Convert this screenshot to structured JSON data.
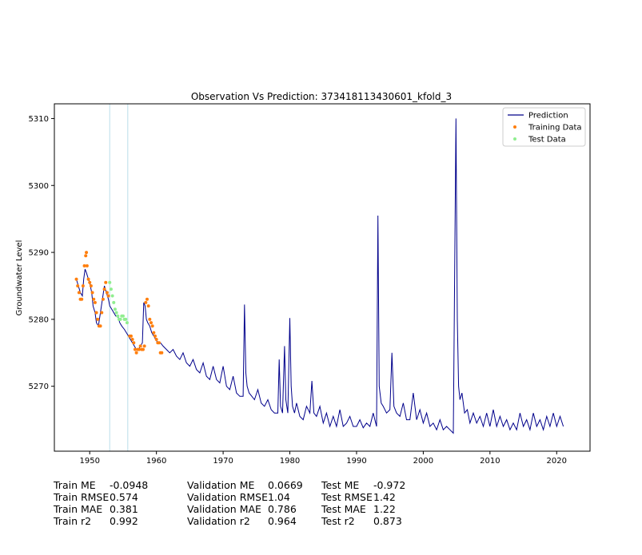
{
  "chart_data": {
    "type": "line",
    "title": "Observation Vs Prediction: 373418113430601_kfold_3",
    "xlabel": "",
    "ylabel": "Groundwater Level",
    "xlim": [
      1944.7,
      2025
    ],
    "ylim": [
      5260.3,
      5312.2
    ],
    "xticks": [
      1950,
      1960,
      1970,
      1980,
      1990,
      2000,
      2010,
      2020
    ],
    "yticks": [
      5270,
      5280,
      5290,
      5300,
      5310
    ],
    "grid": false,
    "legend_position": "top-right",
    "vlines": [
      1953.0,
      1955.7
    ],
    "series": [
      {
        "name": "Prediction",
        "kind": "line",
        "color": "#00008b",
        "x": [
          1948.0,
          1948.3,
          1948.6,
          1948.9,
          1949.1,
          1949.3,
          1949.5,
          1949.8,
          1950.0,
          1950.3,
          1950.5,
          1950.8,
          1951.0,
          1951.3,
          1951.6,
          1951.9,
          1952.2,
          1952.5,
          1952.8,
          1953.0,
          1953.3,
          1953.6,
          1953.9,
          1954.2,
          1954.5,
          1954.8,
          1955.2,
          1955.5,
          1955.8,
          1956.1,
          1956.4,
          1956.7,
          1957.0,
          1957.3,
          1957.6,
          1957.9,
          1958.1,
          1958.3,
          1958.5,
          1958.7,
          1959.0,
          1959.3,
          1959.6,
          1959.9,
          1960.2,
          1960.6,
          1961.0,
          1961.5,
          1962.0,
          1962.5,
          1963.0,
          1963.5,
          1964.0,
          1964.5,
          1965.0,
          1965.5,
          1966.0,
          1966.5,
          1967.0,
          1967.5,
          1968.0,
          1968.5,
          1969.0,
          1969.5,
          1970.0,
          1970.5,
          1971.0,
          1971.5,
          1972.0,
          1972.5,
          1973.0,
          1973.2,
          1973.4,
          1973.6,
          1973.9,
          1974.3,
          1974.7,
          1975.2,
          1975.7,
          1976.2,
          1976.7,
          1977.2,
          1977.7,
          1978.2,
          1978.4,
          1978.6,
          1978.9,
          1979.2,
          1979.4,
          1979.7,
          1980.0,
          1980.2,
          1980.4,
          1980.7,
          1981.0,
          1981.5,
          1982.0,
          1982.5,
          1983.0,
          1983.3,
          1983.6,
          1984.0,
          1984.5,
          1985.0,
          1985.5,
          1986.0,
          1986.5,
          1987.0,
          1987.5,
          1988.0,
          1988.5,
          1989.0,
          1989.5,
          1990.0,
          1990.5,
          1991.0,
          1991.5,
          1992.0,
          1992.5,
          1993.0,
          1993.2,
          1993.4,
          1993.7,
          1994.0,
          1994.5,
          1995.0,
          1995.3,
          1995.6,
          1996.0,
          1996.5,
          1997.0,
          1997.5,
          1998.0,
          1998.5,
          1999.0,
          1999.5,
          2000.0,
          2000.5,
          2001.0,
          2001.5,
          2002.0,
          2002.5,
          2003.0,
          2003.5,
          2004.0,
          2004.5,
          2004.9,
          2005.1,
          2005.3,
          2005.5,
          2005.8,
          2006.2,
          2006.6,
          2007.0,
          2007.5,
          2008.0,
          2008.5,
          2009.0,
          2009.5,
          2010.0,
          2010.5,
          2011.0,
          2011.5,
          2012.0,
          2012.5,
          2013.0,
          2013.5,
          2014.0,
          2014.5,
          2015.0,
          2015.5,
          2016.0,
          2016.5,
          2017.0,
          2017.5,
          2018.0,
          2018.5,
          2019.0,
          2019.5,
          2020.0,
          2020.5,
          2021.0
        ],
        "y": [
          5286,
          5285,
          5284,
          5283.5,
          5286,
          5287.5,
          5287,
          5286,
          5285.5,
          5284,
          5282,
          5281,
          5279.5,
          5279,
          5281,
          5283,
          5285,
          5284,
          5283,
          5282,
          5281.5,
          5281,
          5280.5,
          5280.5,
          5279.5,
          5279,
          5278.5,
          5278,
          5277.5,
          5277,
          5276.5,
          5276,
          5275.5,
          5275.5,
          5276,
          5276.5,
          5282.5,
          5282,
          5280,
          5279.5,
          5279,
          5278,
          5277.5,
          5277,
          5276.5,
          5276.5,
          5276,
          5275.5,
          5275,
          5275.5,
          5274.5,
          5274,
          5275,
          5273.5,
          5273,
          5274,
          5272.5,
          5272,
          5273.5,
          5271.5,
          5271,
          5273,
          5271,
          5270.5,
          5273,
          5270,
          5269.5,
          5271.5,
          5269,
          5268.5,
          5268.5,
          5282.2,
          5272,
          5270,
          5269,
          5268.5,
          5268,
          5269.5,
          5267.5,
          5267,
          5268,
          5266.5,
          5266,
          5266,
          5274,
          5267,
          5266,
          5276,
          5268,
          5266,
          5280.2,
          5270,
          5267,
          5266,
          5267.5,
          5265.5,
          5265,
          5267,
          5266,
          5270.8,
          5266,
          5265.5,
          5267,
          5264.5,
          5266,
          5264,
          5265.5,
          5264,
          5266.5,
          5264,
          5264.5,
          5265.5,
          5264,
          5264,
          5265,
          5263.8,
          5264.5,
          5264,
          5266,
          5264,
          5295.5,
          5270,
          5267.5,
          5267,
          5266,
          5266.5,
          5275,
          5267,
          5266,
          5265.5,
          5267.5,
          5265,
          5265,
          5269,
          5265,
          5266.5,
          5264.5,
          5266,
          5264,
          5264.5,
          5263.5,
          5265,
          5263.5,
          5264,
          5263.5,
          5263,
          5310,
          5280,
          5270,
          5268,
          5269,
          5266,
          5266.5,
          5264.5,
          5266,
          5264.5,
          5265.5,
          5264,
          5266,
          5264,
          5266.5,
          5264,
          5265.5,
          5264,
          5265,
          5263.5,
          5264.5,
          5263.5,
          5266,
          5264,
          5265,
          5263.5,
          5266,
          5264,
          5265,
          5263.5,
          5265.5,
          5264,
          5266,
          5264,
          5265.5,
          5264
        ]
      },
      {
        "name": "Training Data",
        "kind": "scatter",
        "color": "#ff7f0e",
        "x": [
          1948.0,
          1948.2,
          1948.4,
          1948.6,
          1948.8,
          1949.0,
          1949.2,
          1949.4,
          1949.5,
          1949.6,
          1949.8,
          1950.0,
          1950.2,
          1950.4,
          1950.6,
          1950.8,
          1951.0,
          1951.2,
          1951.4,
          1951.6,
          1951.8,
          1952.0,
          1952.2,
          1952.4,
          1952.6,
          1952.8,
          1956.0,
          1956.2,
          1956.4,
          1956.6,
          1956.8,
          1957.0,
          1957.2,
          1957.4,
          1957.6,
          1957.8,
          1958.0,
          1958.2,
          1958.4,
          1958.6,
          1958.8,
          1959.0,
          1959.2,
          1959.4,
          1959.6,
          1959.8,
          1960.0,
          1960.2,
          1960.4,
          1960.6,
          1960.8
        ],
        "y": [
          5286,
          5285,
          5284,
          5283,
          5283,
          5285,
          5288,
          5289.5,
          5290,
          5288,
          5286,
          5285.5,
          5285,
          5284,
          5283,
          5282.5,
          5281,
          5280,
          5279,
          5279,
          5281,
          5283,
          5284.5,
          5285.5,
          5284,
          5283.5,
          5277.5,
          5277.5,
          5277,
          5276.5,
          5275.5,
          5275,
          5275.5,
          5275.5,
          5276,
          5275.5,
          5275.5,
          5276,
          5282.5,
          5283,
          5282,
          5280,
          5279.5,
          5279,
          5278,
          5277.5,
          5277,
          5276.5,
          5276.5,
          5275,
          5275
        ]
      },
      {
        "name": "Test Data",
        "kind": "scatter",
        "color": "#90ee90",
        "x": [
          1953.0,
          1953.2,
          1953.4,
          1953.6,
          1953.8,
          1954.0,
          1954.2,
          1954.4,
          1954.6,
          1954.8,
          1955.0,
          1955.2,
          1955.4,
          1955.6
        ],
        "y": [
          5285.5,
          5284.5,
          5283.5,
          5282.5,
          5281.5,
          5281,
          5280.5,
          5280,
          5280,
          5280.5,
          5280.5,
          5280,
          5280,
          5279.5
        ]
      }
    ]
  },
  "metrics": {
    "train": [
      {
        "name": "Train ME",
        "value": "-0.0948"
      },
      {
        "name": "Train RMSE",
        "value": "0.574"
      },
      {
        "name": "Train MAE",
        "value": "0.381"
      },
      {
        "name": "Train r2",
        "value": "0.992"
      }
    ],
    "validation": [
      {
        "name": "Validation ME",
        "value": "0.0669"
      },
      {
        "name": "Validation RMSE",
        "value": "1.04"
      },
      {
        "name": "Validation MAE",
        "value": "0.786"
      },
      {
        "name": "Validation r2",
        "value": "0.964"
      }
    ],
    "test": [
      {
        "name": "Test ME",
        "value": "-0.972"
      },
      {
        "name": "Test RMSE",
        "value": "1.42"
      },
      {
        "name": "Test MAE",
        "value": "1.22"
      },
      {
        "name": "Test r2",
        "value": "0.873"
      }
    ]
  }
}
